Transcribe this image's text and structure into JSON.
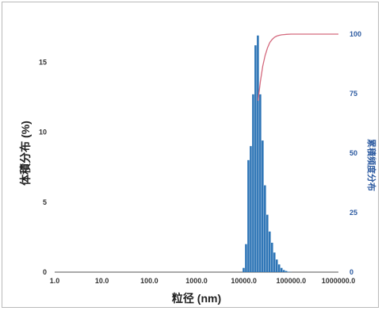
{
  "chart_data": {
    "type": "bar",
    "xlabel": "粒径 (nm)",
    "ylabel": "体積分布 (%)",
    "y2label": "累積頻度分布",
    "x_scale": "log",
    "xlim": [
      1,
      1000000
    ],
    "ylim": [
      0,
      17
    ],
    "y2lim": [
      0,
      100
    ],
    "x_ticks": [
      "1.0",
      "10.0",
      "100.0",
      "1000.0",
      "10000.0",
      "100000.0",
      "1000000.0"
    ],
    "y_ticks": [
      "0",
      "5",
      "10",
      "15"
    ],
    "y2_ticks": [
      "0",
      "25",
      "50",
      "75",
      "100"
    ],
    "grid": false,
    "colors": {
      "bars": "#2e75b6",
      "cumulative_line": "#d46a7e",
      "y2_axis": "#2c5aa0"
    },
    "series": [
      {
        "type": "bar",
        "x": [
          10000,
          11220,
          12589,
          14125,
          15849,
          17783,
          19953,
          22387,
          25119,
          28184,
          31623,
          35481,
          39811,
          44668,
          50119,
          56234,
          63096,
          70795,
          79433,
          89125,
          100000
        ],
        "values": [
          0.3,
          2.0,
          8.0,
          9.0,
          12.7,
          16.2,
          16.9,
          12.7,
          9.4,
          6.2,
          4.1,
          2.9,
          2.1,
          1.4,
          0.9,
          0.55,
          0.3,
          0.15,
          0.08,
          0.03,
          0.01
        ]
      },
      {
        "type": "line",
        "axis": "right",
        "x": [
          20000,
          22387,
          25119,
          28184,
          31623,
          35481,
          39811,
          44668,
          50119,
          56234,
          63096,
          70795,
          79433,
          100000,
          200000,
          500000,
          1000000
        ],
        "values": [
          72,
          80,
          86.5,
          91,
          94.2,
          96.5,
          97.8,
          98.7,
          99.2,
          99.5,
          99.7,
          99.8,
          99.9,
          100,
          100,
          100,
          100
        ]
      }
    ]
  }
}
